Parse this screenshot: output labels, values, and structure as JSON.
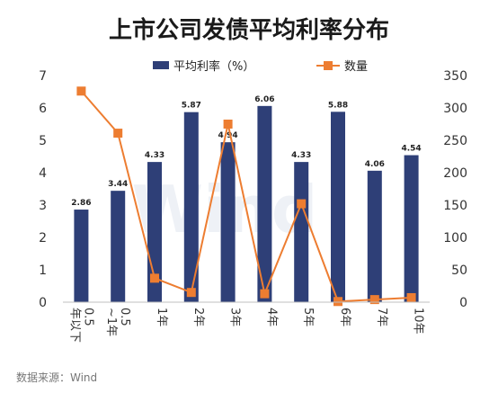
{
  "chart_data": {
    "type": "bar",
    "title": "上市公司发债平均利率分布",
    "source": "数据来源：Wind",
    "watermark": "Wind",
    "categories": [
      "0.5年以下",
      "0.5~1年",
      "1年",
      "2年",
      "3年",
      "4年",
      "5年",
      "6年",
      "7年",
      "10年"
    ],
    "series": [
      {
        "name": "平均利率（%）",
        "type": "bar",
        "axis": "left",
        "color": "#2e3f77",
        "values": [
          2.86,
          3.44,
          4.33,
          5.87,
          4.94,
          6.06,
          4.33,
          5.88,
          4.06,
          4.54
        ],
        "labels": [
          "2.86",
          "3.44",
          "4.33",
          "5.87",
          "4.94",
          "6.06",
          "4.33",
          "5.88",
          "4.06",
          "4.54"
        ]
      },
      {
        "name": "数量",
        "type": "line",
        "axis": "right",
        "color": "#ed7d31",
        "values": [
          326,
          261,
          37,
          15,
          275,
          13,
          152,
          1,
          4,
          7
        ]
      }
    ],
    "y_left": {
      "ylim": [
        0,
        7
      ],
      "ticks": [
        "0",
        "1",
        "2",
        "3",
        "4",
        "5",
        "6",
        "7"
      ]
    },
    "y_right": {
      "ylim": [
        0,
        350
      ],
      "ticks": [
        "0",
        "50",
        "100",
        "150",
        "200",
        "250",
        "300",
        "350"
      ]
    },
    "legend_position": "top-center",
    "grid": false
  }
}
